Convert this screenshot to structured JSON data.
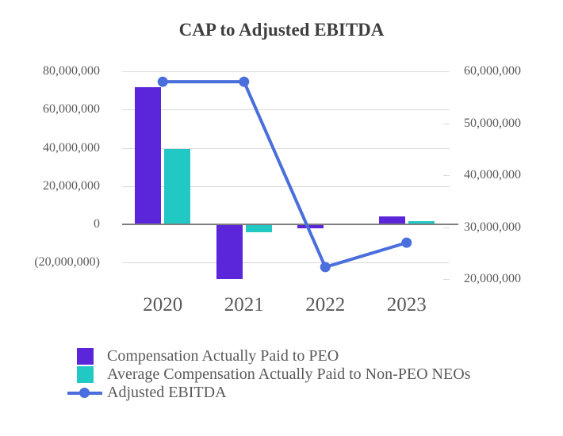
{
  "title": "CAP to Adjusted EBITDA",
  "colors": {
    "peo_bar": "#5B26D9",
    "neo_bar": "#21C8C4",
    "ebitda_line": "#4A6FDC",
    "gridline": "#D9D9D9",
    "zero_line": "#7F7F7F",
    "axis_text": "#595959",
    "title_text": "#3F3F3F"
  },
  "chart_data": {
    "type": "bar",
    "subtype": "combo bar + line, dual axis",
    "title": "CAP to Adjusted EBITDA",
    "categories": [
      "2020",
      "2021",
      "2022",
      "2023"
    ],
    "series": [
      {
        "name": "Compensation Actually Paid to PEO",
        "type": "bar",
        "axis": "left",
        "color": "#5B26D9",
        "values": [
          71700000,
          -28600000,
          -1900000,
          4100000
        ]
      },
      {
        "name": "Average Compensation Actually Paid to Non-PEO NEOs",
        "type": "bar",
        "axis": "left",
        "color": "#21C8C4",
        "values": [
          39400000,
          -4100000,
          0,
          1700000
        ]
      },
      {
        "name": "Adjusted EBITDA",
        "type": "line",
        "axis": "right",
        "color": "#4A6FDC",
        "values": [
          58000000,
          58000000,
          22300000,
          27000000
        ]
      }
    ],
    "left_axis": {
      "min": -20000000,
      "max": 80000000,
      "tick_step": 20000000,
      "ticks": [
        {
          "label": "80,000,000",
          "value": 80000000
        },
        {
          "label": "60,000,000",
          "value": 60000000
        },
        {
          "label": "40,000,000",
          "value": 40000000
        },
        {
          "label": "20,000,000",
          "value": 20000000
        },
        {
          "label": "0",
          "value": 0
        },
        {
          "label": "(20,000,000)",
          "value": -20000000
        }
      ]
    },
    "right_axis": {
      "min": 20000000,
      "max": 60000000,
      "tick_step": 10000000,
      "ticks": [
        {
          "label": "60,000,000",
          "value": 60000000
        },
        {
          "label": "50,000,000",
          "value": 50000000
        },
        {
          "label": "40,000,000",
          "value": 40000000
        },
        {
          "label": "30,000,000",
          "value": 30000000
        },
        {
          "label": "20,000,000",
          "value": 20000000
        }
      ]
    },
    "grid": true,
    "legend_position": "bottom-left"
  },
  "legend": {
    "items": [
      {
        "label": "Compensation Actually Paid to PEO",
        "swatch": "square",
        "color": "#5B26D9"
      },
      {
        "label": "Average Compensation Actually Paid to Non-PEO NEOs",
        "swatch": "square",
        "color": "#21C8C4"
      },
      {
        "label": "Adjusted EBITDA",
        "swatch": "line-dot",
        "color": "#4A6FDC"
      }
    ]
  }
}
